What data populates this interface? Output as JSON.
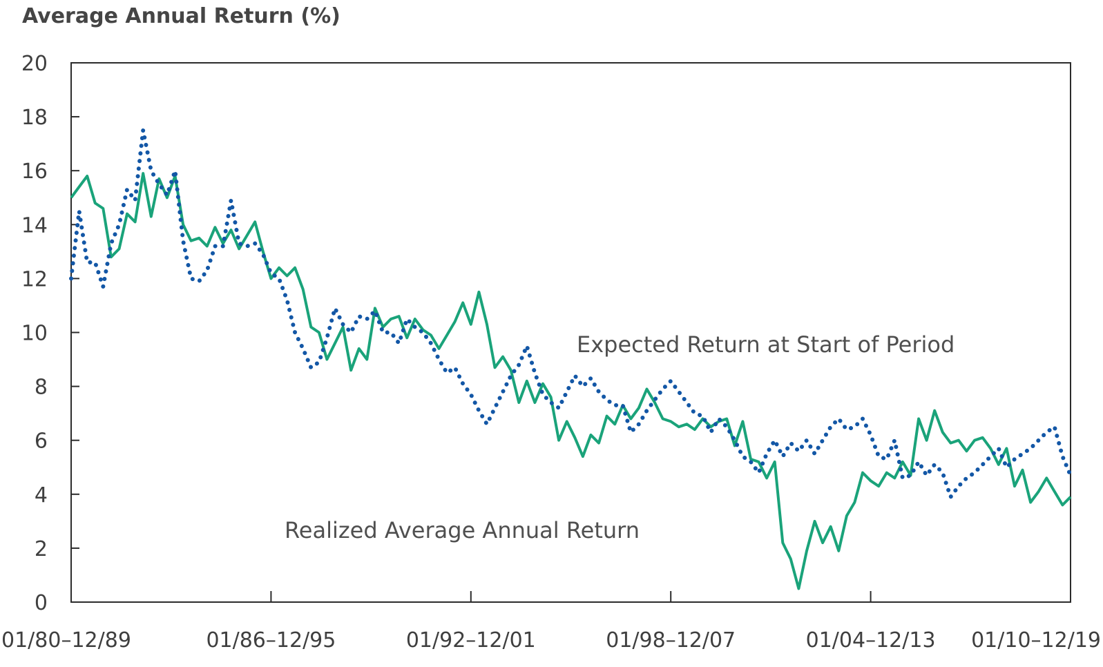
{
  "chart_data": {
    "type": "line",
    "title": "Average Annual Return (%)",
    "y_ticks": [
      "0",
      "2",
      "4",
      "6",
      "8",
      "10",
      "12",
      "14",
      "16",
      "18",
      "20"
    ],
    "x_ticks": [
      "01/80–12/89",
      "01/86–12/95",
      "01/92–12/01",
      "01/98–12/07",
      "01/04–12/13",
      "01/10–12/19"
    ],
    "ylim": [
      0,
      20
    ],
    "grid": false,
    "annotations": {
      "expected": "Expected Return at Start of Period",
      "realized": "Realized Average Annual Return"
    },
    "series": [
      {
        "key": "realized",
        "style": "solid",
        "color": "#1aa37a",
        "x": [
          0,
          0.5,
          1,
          1.5,
          2,
          2.5,
          3,
          3.5,
          4,
          4.5,
          5,
          5.5,
          6,
          6.5,
          7,
          7.5,
          8,
          8.5,
          9,
          9.5,
          10,
          10.5,
          11,
          11.5,
          12,
          12.5,
          13,
          13.5,
          14,
          14.5,
          15,
          15.5,
          16,
          16.5,
          17,
          17.5,
          18,
          18.5,
          19,
          19.5,
          20,
          20.5,
          21,
          21.5,
          22,
          22.5,
          23,
          23.5,
          24,
          24.5,
          25,
          25.5,
          26,
          26.5,
          27,
          27.5,
          28,
          28.5,
          29,
          29.5,
          30,
          30.5,
          31,
          31.5,
          32,
          32.5,
          33,
          33.5,
          34,
          34.5,
          35,
          35.5,
          36,
          36.5,
          37,
          37.5,
          38,
          38.5,
          39,
          39.5,
          40,
          40.5,
          41,
          41.5,
          42,
          42.5,
          43,
          43.5,
          44,
          44.5,
          45,
          45.5,
          46,
          46.5,
          47,
          47.5,
          48,
          48.5,
          49,
          49.5,
          50,
          50.5,
          51,
          51.5,
          52,
          52.5,
          53,
          53.5,
          54,
          54.5,
          55,
          55.5,
          56,
          56.5,
          57,
          57.5,
          58,
          58.5,
          59,
          59.5,
          60,
          60.5,
          61,
          61.5,
          62,
          62.5
        ],
        "y": [
          15.0,
          15.4,
          15.8,
          14.8,
          14.6,
          12.8,
          13.1,
          14.4,
          14.1,
          15.9,
          14.3,
          15.7,
          15.0,
          15.8,
          14.0,
          13.4,
          13.5,
          13.2,
          13.9,
          13.3,
          13.8,
          13.1,
          13.6,
          14.1,
          13.0,
          12.0,
          12.4,
          12.1,
          12.4,
          11.6,
          10.2,
          10.0,
          9.0,
          9.6,
          10.2,
          8.6,
          9.4,
          9.0,
          10.9,
          10.2,
          10.5,
          10.6,
          9.8,
          10.5,
          10.1,
          9.9,
          9.4,
          9.9,
          10.4,
          11.1,
          10.3,
          11.5,
          10.3,
          8.7,
          9.1,
          8.6,
          7.4,
          8.2,
          7.4,
          8.1,
          7.6,
          6.0,
          6.7,
          6.1,
          5.4,
          6.2,
          5.9,
          6.9,
          6.6,
          7.3,
          6.8,
          7.2,
          7.9,
          7.4,
          6.8,
          6.7,
          6.5,
          6.6,
          6.4,
          6.8,
          6.5,
          6.7,
          6.8,
          5.8,
          6.7,
          5.3,
          5.2,
          4.6,
          5.2,
          2.2,
          1.6,
          0.5,
          1.9,
          3.0,
          2.2,
          2.8,
          1.9,
          3.2,
          3.7,
          4.8,
          4.5,
          4.3,
          4.8,
          4.6,
          5.2,
          4.7,
          6.8,
          6.0,
          7.1,
          6.3,
          5.9,
          6.0,
          5.6,
          6.0,
          6.1,
          5.7,
          5.1,
          5.7,
          4.3,
          4.9,
          3.7,
          4.1,
          4.6,
          4.1,
          3.6,
          3.9
        ]
      },
      {
        "key": "expected",
        "style": "dotted",
        "color": "#1357a6",
        "x": [
          0,
          0.5,
          1,
          1.5,
          2,
          2.5,
          3,
          3.5,
          4,
          4.5,
          5,
          5.5,
          6,
          6.5,
          7,
          7.5,
          8,
          8.5,
          9,
          9.5,
          10,
          10.5,
          11,
          11.5,
          12,
          12.5,
          13,
          13.5,
          14,
          14.5,
          15,
          15.5,
          16,
          16.5,
          17,
          17.5,
          18,
          18.5,
          19,
          19.5,
          20,
          20.5,
          21,
          21.5,
          22,
          22.5,
          23,
          23.5,
          24,
          24.5,
          25,
          25.5,
          26,
          26.5,
          27,
          27.5,
          28,
          28.5,
          29,
          29.5,
          30,
          30.5,
          31,
          31.5,
          32,
          32.5,
          33,
          33.5,
          34,
          34.5,
          35,
          35.5,
          36,
          36.5,
          37,
          37.5,
          38,
          38.5,
          39,
          39.5,
          40,
          40.5,
          41,
          41.5,
          42,
          42.5,
          43,
          43.5,
          44,
          44.5,
          45,
          45.5,
          46,
          46.5,
          47,
          47.5,
          48,
          48.5,
          49,
          49.5,
          50,
          50.5,
          51,
          51.5,
          52,
          52.5,
          53,
          53.5,
          54,
          54.5,
          55,
          55.5,
          56,
          56.5,
          57,
          57.5,
          58,
          58.5,
          59,
          59.5,
          60,
          60.5,
          61,
          61.5,
          62,
          62.5
        ],
        "y": [
          12.0,
          14.5,
          12.6,
          12.6,
          11.7,
          13.3,
          14.0,
          15.3,
          14.9,
          17.5,
          16.0,
          15.5,
          15.1,
          16.0,
          13.4,
          12.0,
          11.9,
          12.3,
          13.2,
          13.2,
          14.9,
          13.3,
          13.2,
          13.3,
          12.9,
          12.2,
          12.0,
          11.2,
          10.0,
          9.4,
          8.7,
          8.9,
          9.8,
          10.9,
          10.3,
          10.0,
          10.6,
          10.5,
          10.8,
          10.0,
          10.0,
          9.6,
          10.5,
          10.2,
          10.0,
          9.6,
          9.0,
          8.5,
          8.7,
          8.1,
          7.7,
          7.1,
          6.6,
          7.2,
          7.8,
          8.4,
          8.8,
          9.5,
          8.5,
          7.7,
          7.4,
          7.2,
          7.8,
          8.4,
          8.0,
          8.3,
          7.8,
          7.5,
          7.3,
          7.3,
          6.3,
          6.6,
          7.1,
          7.5,
          7.9,
          8.2,
          7.8,
          7.4,
          7.0,
          6.9,
          6.3,
          6.8,
          6.5,
          6.0,
          5.4,
          5.2,
          4.8,
          5.5,
          6.0,
          5.4,
          5.9,
          5.6,
          6.0,
          5.5,
          6.0,
          6.5,
          6.8,
          6.4,
          6.5,
          6.8,
          6.2,
          5.4,
          5.3,
          6.0,
          4.6,
          4.7,
          5.2,
          4.7,
          5.1,
          4.8,
          3.9,
          4.3,
          4.6,
          4.8,
          5.1,
          5.4,
          5.7,
          5.0,
          5.3,
          5.5,
          5.7,
          6.0,
          6.3,
          6.5,
          5.4,
          4.7
        ]
      }
    ]
  }
}
